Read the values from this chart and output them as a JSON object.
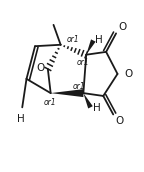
{
  "bg_color": "#ffffff",
  "line_color": "#1a1a1a",
  "line_width": 1.3,
  "figsize": [
    1.44,
    1.72
  ],
  "dpi": 100,
  "xlim": [
    0,
    100
  ],
  "ylim": [
    0,
    120
  ]
}
